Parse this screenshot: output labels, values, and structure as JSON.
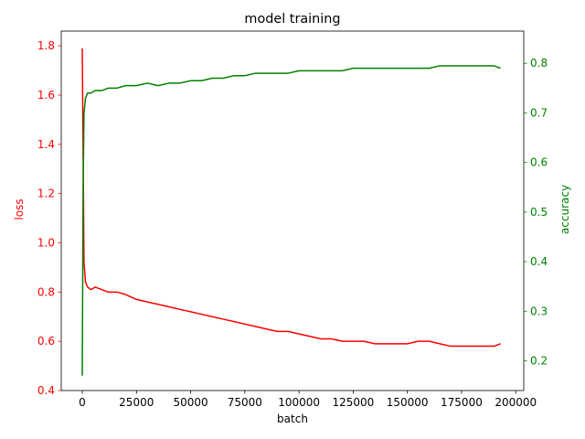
{
  "chart_data": {
    "type": "line",
    "title": "model training",
    "xlabel": "batch",
    "xlim": [
      -9700,
      203700
    ],
    "xticks": [
      0,
      25000,
      50000,
      75000,
      100000,
      125000,
      150000,
      175000,
      200000
    ],
    "left_axis": {
      "label": "loss",
      "color": "#ff0000",
      "ylim": [
        0.4,
        1.86
      ],
      "ticks": [
        0.4,
        0.6,
        0.8,
        1.0,
        1.2,
        1.4,
        1.6,
        1.8
      ],
      "tick_labels": [
        "0.4",
        "0.6",
        "0.8",
        "1.0",
        "1.2",
        "1.4",
        "1.6",
        "1.8"
      ]
    },
    "right_axis": {
      "label": "accuracy",
      "color": "#008000",
      "ylim": [
        0.14,
        0.865
      ],
      "ticks": [
        0.2,
        0.3,
        0.4,
        0.5,
        0.6,
        0.7,
        0.8
      ],
      "tick_labels": [
        "0.2",
        "0.3",
        "0.4",
        "0.5",
        "0.6",
        "0.7",
        "0.8"
      ]
    },
    "series": [
      {
        "axis": "left",
        "color": "#ff0000",
        "x": [
          0,
          400,
          800,
          1500,
          2500,
          4000,
          6000,
          9000,
          12000,
          16000,
          20000,
          25000,
          30000,
          35000,
          40000,
          45000,
          50000,
          55000,
          60000,
          65000,
          70000,
          75000,
          80000,
          85000,
          90000,
          95000,
          100000,
          105000,
          110000,
          115000,
          120000,
          125000,
          130000,
          135000,
          140000,
          145000,
          150000,
          155000,
          160000,
          165000,
          170000,
          175000,
          180000,
          185000,
          190000,
          193000
        ],
        "values": [
          1.79,
          1.35,
          0.92,
          0.84,
          0.82,
          0.81,
          0.82,
          0.81,
          0.8,
          0.8,
          0.79,
          0.77,
          0.76,
          0.75,
          0.74,
          0.73,
          0.72,
          0.71,
          0.7,
          0.69,
          0.68,
          0.67,
          0.66,
          0.65,
          0.64,
          0.64,
          0.63,
          0.62,
          0.61,
          0.61,
          0.6,
          0.6,
          0.6,
          0.59,
          0.59,
          0.59,
          0.59,
          0.6,
          0.6,
          0.59,
          0.58,
          0.58,
          0.58,
          0.58,
          0.58,
          0.59
        ]
      },
      {
        "axis": "right",
        "color": "#008000",
        "x": [
          0,
          400,
          800,
          1500,
          2500,
          4000,
          6000,
          9000,
          12000,
          16000,
          20000,
          25000,
          30000,
          35000,
          40000,
          45000,
          50000,
          55000,
          60000,
          65000,
          70000,
          75000,
          80000,
          85000,
          90000,
          95000,
          100000,
          105000,
          110000,
          115000,
          120000,
          125000,
          130000,
          135000,
          140000,
          145000,
          150000,
          155000,
          160000,
          165000,
          170000,
          175000,
          180000,
          185000,
          190000,
          193000
        ],
        "values": [
          0.17,
          0.55,
          0.7,
          0.73,
          0.74,
          0.74,
          0.745,
          0.745,
          0.75,
          0.75,
          0.755,
          0.755,
          0.76,
          0.755,
          0.76,
          0.76,
          0.765,
          0.765,
          0.77,
          0.77,
          0.775,
          0.775,
          0.78,
          0.78,
          0.78,
          0.78,
          0.785,
          0.785,
          0.785,
          0.785,
          0.785,
          0.79,
          0.79,
          0.79,
          0.79,
          0.79,
          0.79,
          0.79,
          0.79,
          0.795,
          0.795,
          0.795,
          0.795,
          0.795,
          0.795,
          0.79
        ]
      }
    ]
  }
}
